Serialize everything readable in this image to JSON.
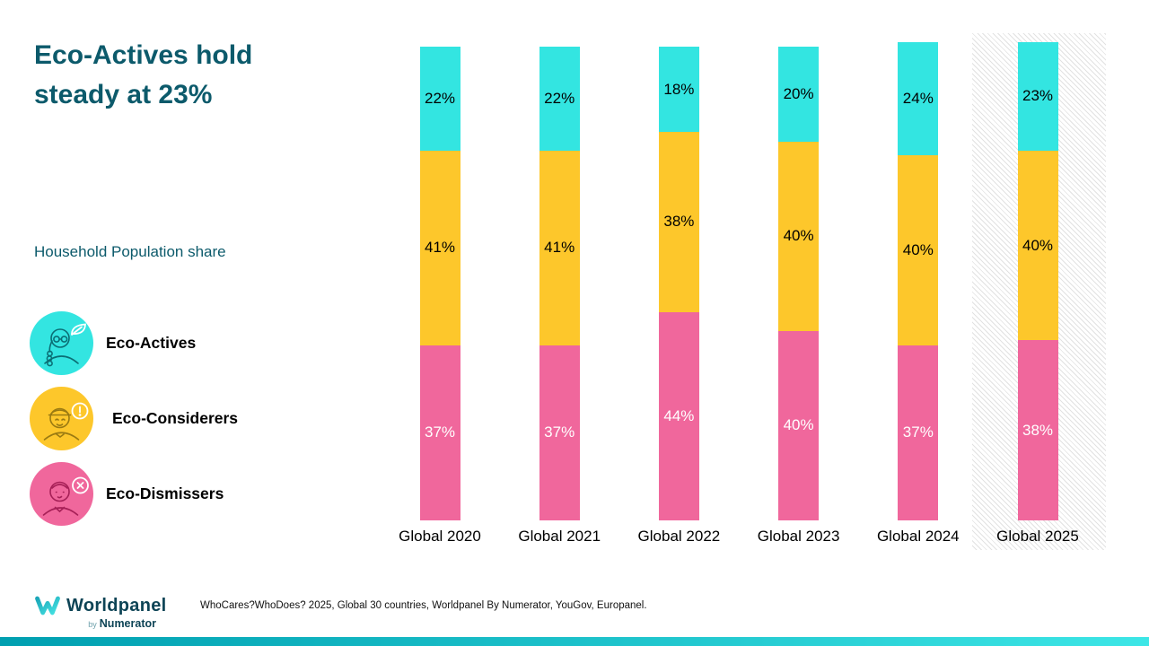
{
  "title": {
    "line1": "Eco-Actives hold",
    "line2": "steady at 23%"
  },
  "subtitle": "Household Population share",
  "legend": {
    "items": [
      {
        "label": "Eco-Actives",
        "icon": "eco-actives-person-leaf-icon",
        "color": "#33E5E1"
      },
      {
        "label": "Eco-Considerers",
        "icon": "eco-considerers-person-alert-icon",
        "color": "#FDC72B"
      },
      {
        "label": "Eco-Dismissers",
        "icon": "eco-dismissers-person-cross-icon",
        "color": "#F0679C"
      }
    ]
  },
  "chart_data": {
    "type": "bar",
    "subtype": "stacked-vertical",
    "categories": [
      "Global 2020",
      "Global 2021",
      "Global 2022",
      "Global 2023",
      "Global 2024",
      "Global 2025"
    ],
    "series": [
      {
        "name": "Eco-Actives",
        "position": "top",
        "color": "#33E5E1",
        "label_color": "#000000",
        "values": [
          22,
          22,
          18,
          20,
          24,
          23
        ]
      },
      {
        "name": "Eco-Considerers",
        "position": "middle",
        "color": "#FDC72B",
        "label_color": "#000000",
        "values": [
          41,
          41,
          38,
          40,
          40,
          40
        ]
      },
      {
        "name": "Eco-Dismissers",
        "position": "bottom",
        "color": "#F0679C",
        "label_color": "#ffffff",
        "values": [
          37,
          37,
          44,
          40,
          37,
          38
        ]
      }
    ],
    "value_suffix": "%",
    "ylim": [
      0,
      100
    ],
    "grid": false,
    "legend_position": "left",
    "highlight_category": "Global 2025",
    "highlight_style": "diagonal-hatch-background"
  },
  "footer": {
    "logo": {
      "brand": "Worldpanel",
      "by": "by",
      "company": "Numerator"
    },
    "source": "WhoCares?WhoDoes? 2025, Global 30 countries, Worldpanel By Numerator, YouGov, Europanel."
  },
  "colors": {
    "title_teal": "#0C5A6B",
    "eco_actives_cyan": "#33E5E1",
    "eco_considerers_yellow": "#FDC72B",
    "eco_dismissers_pink": "#F0679C",
    "logo_navy": "#0E4456",
    "strip_gradient_left": "#009FB0",
    "strip_gradient_right": "#3DE6E6",
    "hatch_line": "#E2E2E2"
  }
}
